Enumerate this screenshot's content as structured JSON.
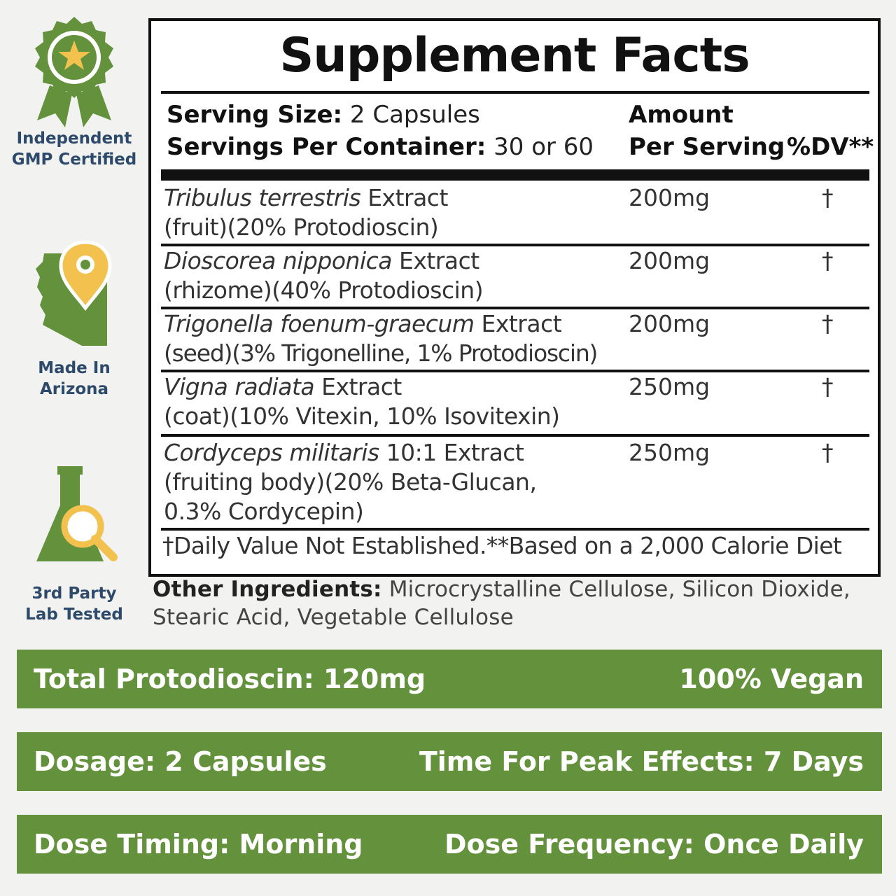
{
  "badges": {
    "gmp": {
      "line1": "Independent",
      "line2": "GMP Certified",
      "icon": "award-ribbon-star-icon"
    },
    "arizona": {
      "line1": "Made In",
      "line2": "Arizona",
      "icon": "arizona-map-pin-icon"
    },
    "lab": {
      "line1": "3rd Party",
      "line2": "Lab Tested",
      "icon": "flask-magnifier-icon"
    }
  },
  "facts": {
    "title": "Supplement Facts",
    "serving_size_label": "Serving Size:",
    "serving_size_value": " 2 Capsules",
    "servings_per_container_label": "Servings Per Container:",
    "servings_per_container_value": " 30 or 60",
    "amount_line1": "Amount",
    "amount_line2": "Per Serving",
    "dv_header": "%DV**",
    "rows": [
      {
        "name_italic": "Tribulus terrestris",
        "name_rest": " Extract",
        "detail": "(fruit)(20% Protodioscin)",
        "amount": "200mg",
        "dv": "†"
      },
      {
        "name_italic": "Dioscorea nipponica",
        "name_rest": " Extract",
        "detail": "(rhizome)(40% Protodioscin)",
        "amount": "200mg",
        "dv": "†"
      },
      {
        "name_italic": "Trigonella foenum-graecum",
        "name_rest": " Extract",
        "detail": "(seed)(3% Trigonelline, 1% Protodioscin)",
        "amount": "200mg",
        "dv": "†"
      },
      {
        "name_italic": "Vigna radiata",
        "name_rest": " Extract",
        "detail": "(coat)(10% Vitexin, 10% Isovitexin)",
        "amount": "250mg",
        "dv": "†"
      },
      {
        "name_italic": "Cordyceps militaris",
        "name_rest": " 10:1 Extract",
        "detail": "(fruiting body)(20% Beta-Glucan,",
        "detail2": "0.3% Cordycepin)",
        "amount": "250mg",
        "dv": "†"
      }
    ],
    "footnote": "†Daily Value Not Established.**Based on a 2,000 Calorie Diet"
  },
  "other_ingredients": {
    "label": "Other Ingredients:",
    "text": " Microcrystalline Cellulose, Silicon Dioxide,",
    "text2": "Stearic Acid, Vegetable Cellulose"
  },
  "bars": [
    {
      "left": "Total Protodioscin: 120mg",
      "right": "100% Vegan"
    },
    {
      "left": "Dosage: 2 Capsules",
      "right": "Time For Peak Effects: 7 Days"
    },
    {
      "left": "Dose Timing: Morning",
      "right": "Dose Frequency: Once Daily"
    }
  ],
  "colors": {
    "green": "#64923c",
    "badge_text": "#2e4a6b",
    "gold": "#f2c14e",
    "background": "#f2f2f1"
  }
}
